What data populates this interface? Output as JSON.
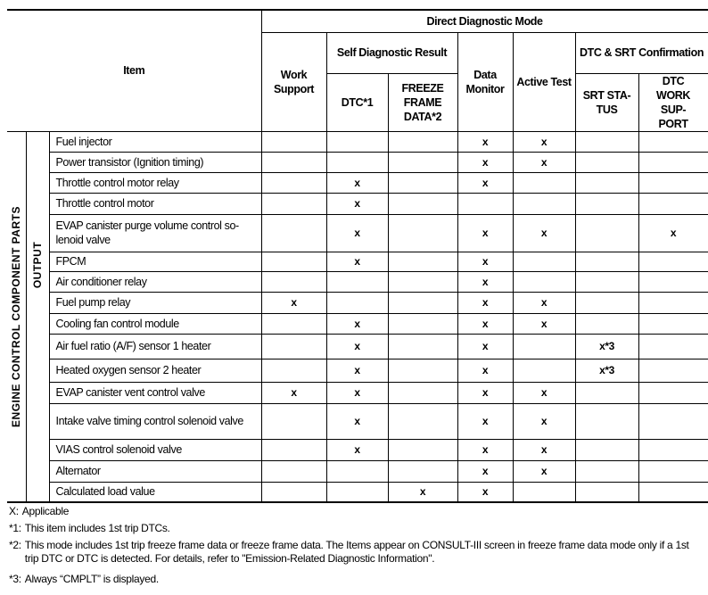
{
  "header": {
    "item": "Item",
    "direct_diagnostic_mode": "Direct Diagnostic Mode",
    "work_support": "Work Support",
    "self_diagnostic_result": "Self Diagnostic Result",
    "dtc": "DTC*1",
    "freeze_frame": "FREEZE FRAME DATA*2",
    "data_monitor": "Data Monitor",
    "active_test": "Active Test",
    "dtc_srt_confirmation": "DTC & SRT Confirmation",
    "srt_status": "SRT STA-TUS",
    "dtc_work_support": "DTC WORK SUP-PORT"
  },
  "group_label": "ENGINE CONTROL COMPONENT PARTS",
  "subgroup_label": "OUTPUT",
  "rows": [
    {
      "item": "Fuel injector",
      "cells": [
        "",
        "",
        "",
        "x",
        "x",
        "",
        ""
      ]
    },
    {
      "item": "Power transistor (Ignition timing)",
      "cells": [
        "",
        "",
        "",
        "x",
        "x",
        "",
        ""
      ]
    },
    {
      "item": "Throttle control motor relay",
      "cells": [
        "",
        "x",
        "",
        "x",
        "",
        "",
        ""
      ]
    },
    {
      "item": "Throttle control motor",
      "cells": [
        "",
        "x",
        "",
        "",
        "",
        "",
        ""
      ]
    },
    {
      "item": "EVAP canister purge volume control so-lenoid valve",
      "cells": [
        "",
        "x",
        "",
        "x",
        "x",
        "",
        "x"
      ]
    },
    {
      "item": "FPCM",
      "cells": [
        "",
        "x",
        "",
        "x",
        "",
        "",
        ""
      ]
    },
    {
      "item": "Air conditioner relay",
      "cells": [
        "",
        "",
        "",
        "x",
        "",
        "",
        ""
      ]
    },
    {
      "item": "Fuel pump relay",
      "cells": [
        "x",
        "",
        "",
        "x",
        "x",
        "",
        ""
      ]
    },
    {
      "item": "Cooling fan control module",
      "cells": [
        "",
        "x",
        "",
        "x",
        "x",
        "",
        ""
      ]
    },
    {
      "item": "Air fuel ratio (A/F) sensor 1 heater",
      "cells": [
        "",
        "x",
        "",
        "x",
        "",
        "x*3",
        ""
      ]
    },
    {
      "item": "Heated oxygen sensor 2 heater",
      "cells": [
        "",
        "x",
        "",
        "x",
        "",
        "x*3",
        ""
      ]
    },
    {
      "item": "EVAP canister vent control valve",
      "cells": [
        "x",
        "x",
        "",
        "x",
        "x",
        "",
        ""
      ]
    },
    {
      "item": "Intake valve timing control solenoid valve",
      "cells": [
        "",
        "x",
        "",
        "x",
        "x",
        "",
        ""
      ]
    },
    {
      "item": "VIAS control solenoid valve",
      "cells": [
        "",
        "x",
        "",
        "x",
        "x",
        "",
        ""
      ]
    },
    {
      "item": "Alternator",
      "cells": [
        "",
        "",
        "",
        "x",
        "x",
        "",
        ""
      ]
    },
    {
      "item": "Calculated load value",
      "cells": [
        "",
        "",
        "x",
        "x",
        "",
        "",
        ""
      ]
    }
  ],
  "notes": [
    {
      "key": "X:",
      "text": "Applicable"
    },
    {
      "key": "*1:",
      "text": "This item includes 1st trip DTCs."
    },
    {
      "key": "*2:",
      "text": "This mode includes 1st trip freeze frame data or freeze frame data. The Items appear on CONSULT-III screen in freeze frame data mode only if a 1st trip DTC or DTC is detected.  For details, refer to \"Emission-Related Diagnostic Information\"."
    },
    {
      "key": "*3:",
      "text": "Always “CMPLT” is displayed."
    }
  ]
}
